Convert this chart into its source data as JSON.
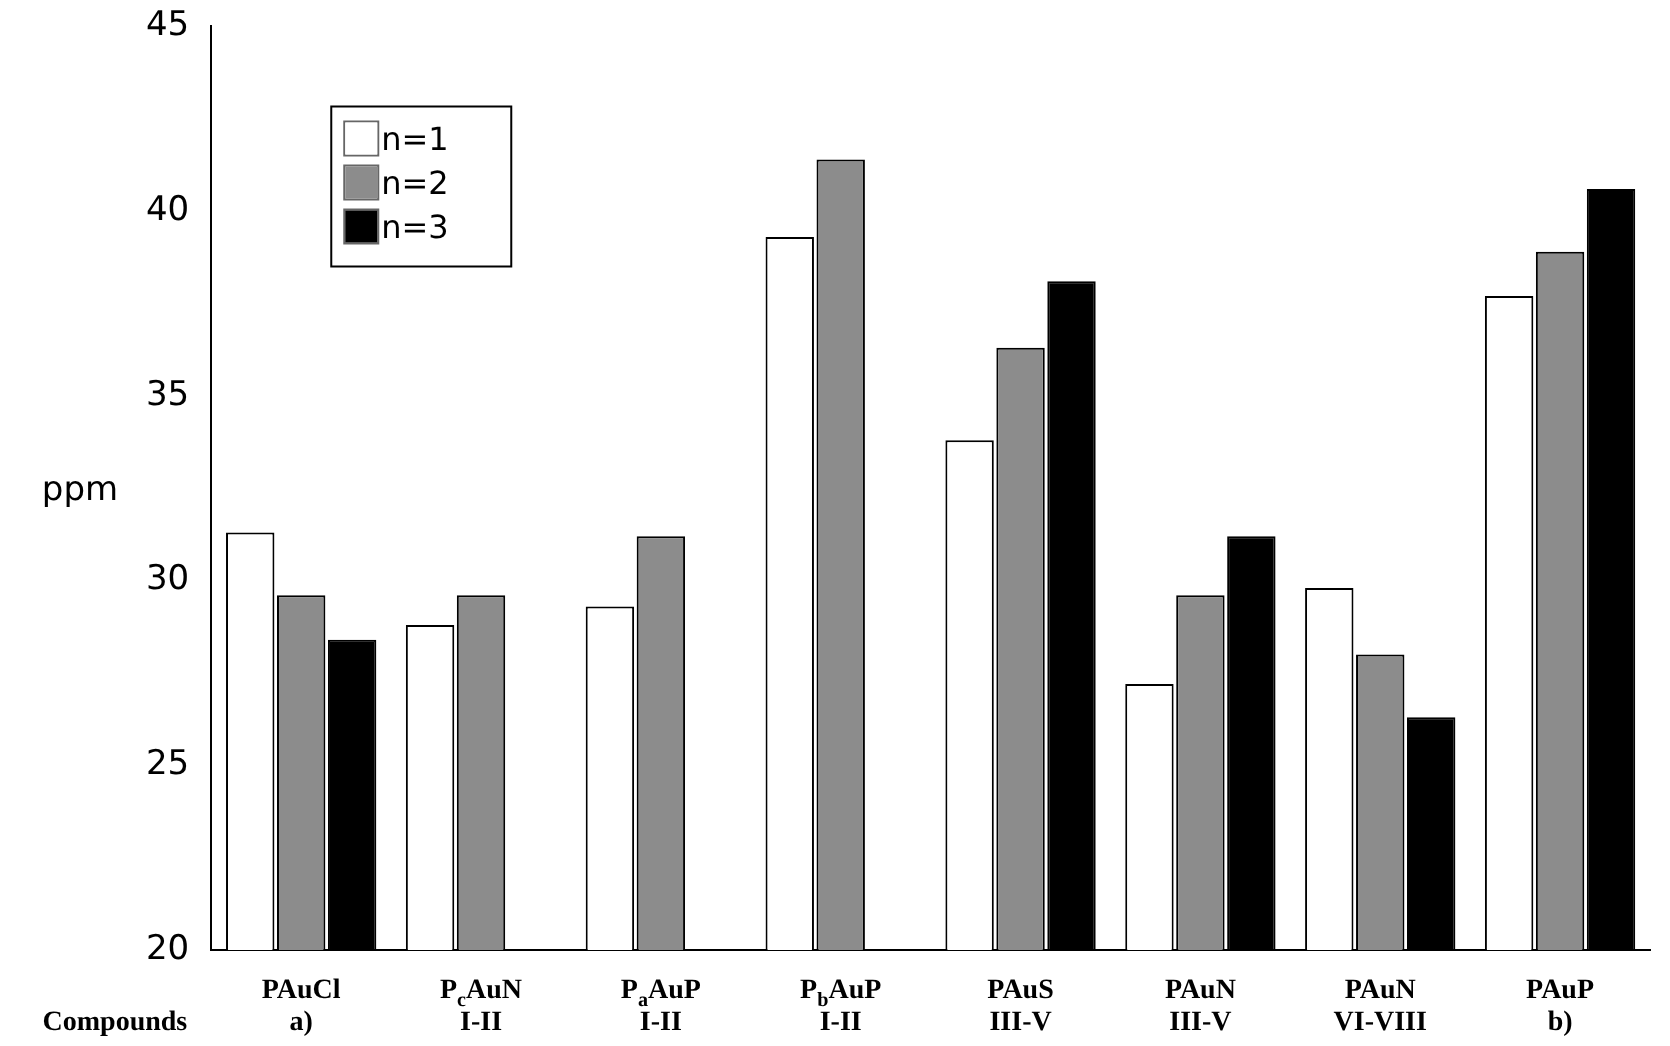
{
  "chart_data": {
    "type": "bar",
    "ylabel": "ppm",
    "xlabel": "Compounds",
    "categories": [
      "PAuCl\na)",
      "P$_{c}$AuN\nI-II",
      "P$_{a}$AuP\nI-II",
      "P$_{b}$AuP\nI-II",
      "PAuS\nIII-V",
      "PAuN\nIII-V",
      "PAuN\nVI-VIII",
      "PAuP\nb)"
    ],
    "series": [
      {
        "name": "n=1",
        "color": "#ffffff",
        "values": [
          31.3,
          28.8,
          29.3,
          39.3,
          33.8,
          27.2,
          29.8,
          37.7
        ]
      },
      {
        "name": "n=2",
        "color": "#8c8c8c",
        "values": [
          29.6,
          29.6,
          31.2,
          41.4,
          36.3,
          29.6,
          28.0,
          38.9
        ]
      },
      {
        "name": "n=3",
        "color": "#000000",
        "values": [
          28.4,
          null,
          null,
          null,
          38.1,
          31.2,
          26.3,
          40.6
        ]
      }
    ],
    "ylim": [
      20,
      45
    ],
    "yticks": [
      20,
      25,
      30,
      35,
      40,
      45
    ],
    "grid": false,
    "legend": "top left"
  }
}
